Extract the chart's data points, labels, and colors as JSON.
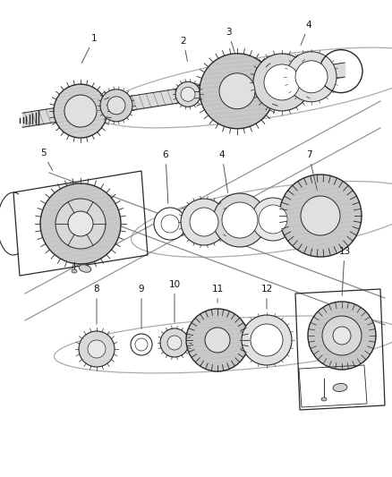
{
  "bg_color": "#ffffff",
  "line_color": "#2a2a2a",
  "light_gray": "#c8c8c8",
  "mid_gray": "#a0a0a0",
  "dark_gray": "#505050",
  "fig_width": 4.38,
  "fig_height": 5.33,
  "dpi": 100
}
